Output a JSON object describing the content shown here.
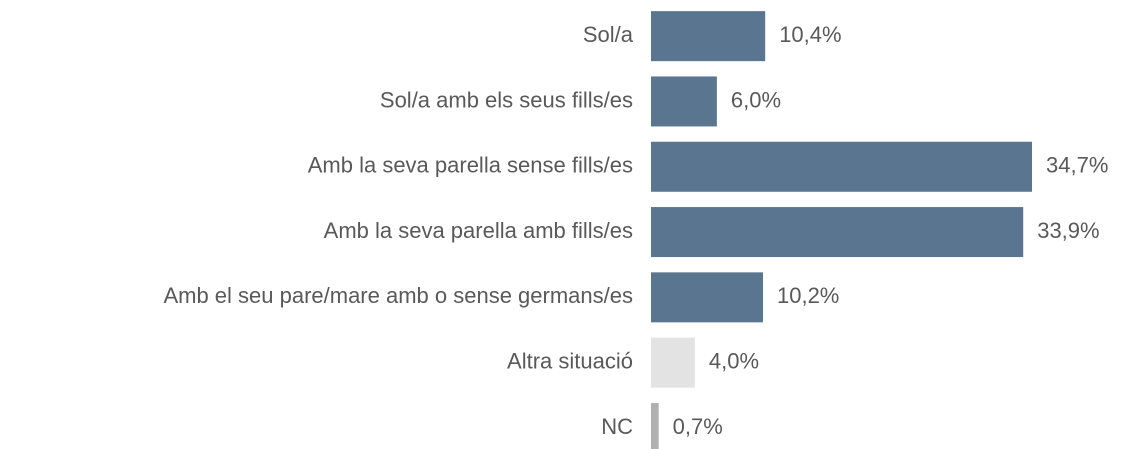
{
  "chart_data": {
    "type": "bar",
    "orientation": "horizontal",
    "categories": [
      "Sol/a",
      "Sol/a amb els seus fills/es",
      "Amb la seva parella sense fills/es",
      "Amb la seva parella amb fills/es",
      "Amb el seu pare/mare amb o sense germans/es",
      "Altra situació",
      "NC"
    ],
    "values": [
      10.4,
      6.0,
      34.7,
      33.9,
      10.2,
      4.0,
      0.7
    ],
    "value_labels": [
      "10,4%",
      "6,0%",
      "34,7%",
      "33,9%",
      "10,2%",
      "4,0%",
      "0,7%"
    ],
    "colors": [
      "#5a7590",
      "#5a7590",
      "#5a7590",
      "#5a7590",
      "#5a7590",
      "#e3e3e3",
      "#b0b0b0"
    ]
  }
}
